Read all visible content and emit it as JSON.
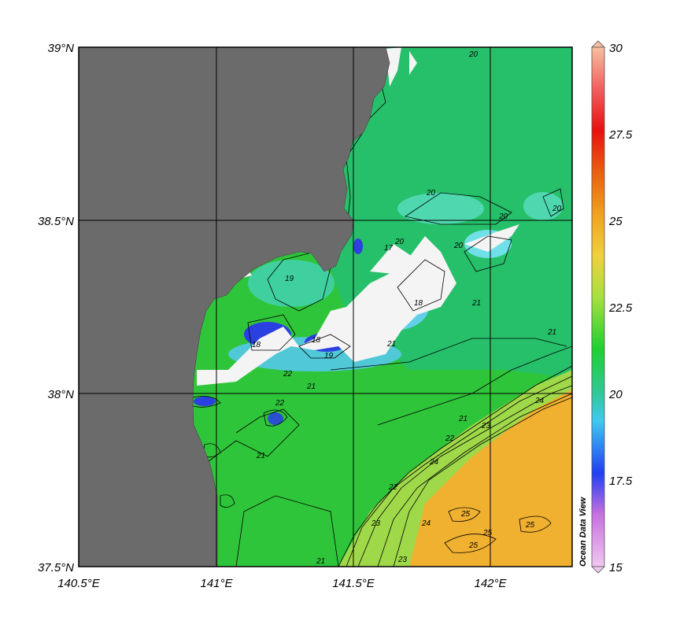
{
  "map": {
    "lon_ticks": [
      {
        "value": 140.5,
        "label": "140.5°E"
      },
      {
        "value": 141.0,
        "label": "141°E"
      },
      {
        "value": 141.5,
        "label": "141.5°E"
      },
      {
        "value": 142.0,
        "label": "142°E"
      }
    ],
    "lat_ticks": [
      {
        "value": 39.0,
        "label": "39°N"
      },
      {
        "value": 38.5,
        "label": "38.5°N"
      },
      {
        "value": 38.0,
        "label": "38°N"
      },
      {
        "value": 37.5,
        "label": "37.5°N"
      }
    ],
    "land_color": "#6b6b6b",
    "contour_labels": [
      "17",
      "18",
      "19",
      "20",
      "21",
      "22",
      "23",
      "24",
      "25"
    ]
  },
  "colorbar": {
    "range": [
      15,
      30
    ],
    "ticks": [
      "30",
      "27.5",
      "25",
      "22.5",
      "20",
      "17.5",
      "15"
    ],
    "watermark": "Ocean Data View"
  }
}
